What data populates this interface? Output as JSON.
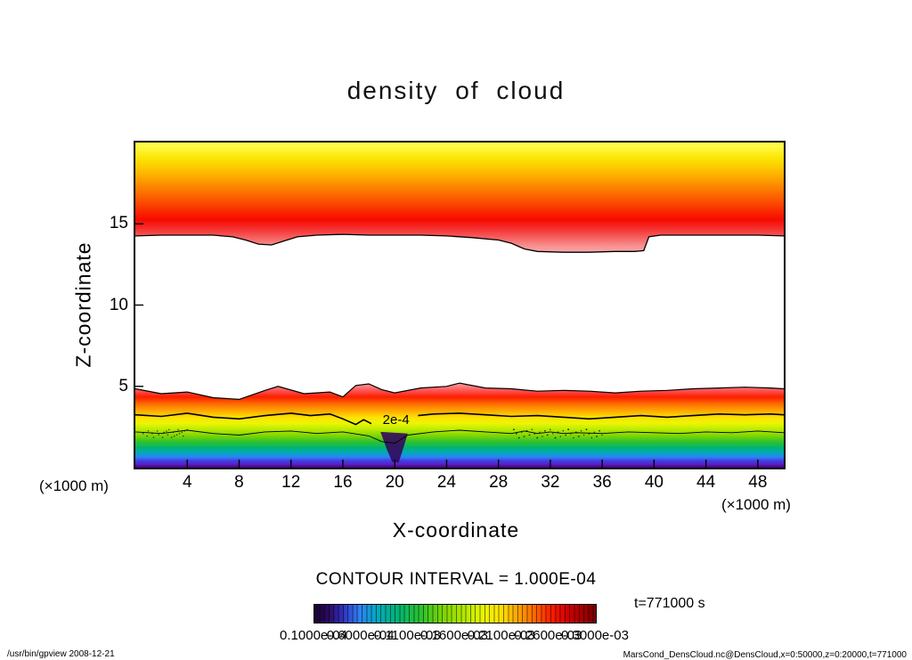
{
  "title": "density of cloud",
  "axes": {
    "x_label": "X-coordinate",
    "y_label": "Z-coordinate",
    "x_unit_left": "(×1000 m)",
    "x_unit_right": "(×1000 m)"
  },
  "annotations": {
    "contour_interval": "CONTOUR INTERVAL = 1.000E-04",
    "time_label": "t=771000 s",
    "footer_left": "/usr/bin/gpview  2008-12-21",
    "footer_right": "MarsCond_DensCloud.nc@DensCloud,x=0:50000,z=0:20000,t=771000"
  },
  "chart_data": {
    "type": "heatmap",
    "subtype": "filled-contour",
    "title": "density of cloud",
    "xlabel": "X-coordinate",
    "ylabel": "Z-coordinate",
    "x_unit": "×1000 m",
    "y_unit": "×1000 m",
    "xlim": [
      0,
      50
    ],
    "ylim": [
      0,
      20
    ],
    "x_ticks": [
      4,
      8,
      12,
      16,
      20,
      24,
      28,
      32,
      36,
      40,
      44,
      48
    ],
    "y_ticks": [
      5,
      10,
      15
    ],
    "contour_interval": "1.000E-04",
    "grid": false,
    "legend_position": "bottom-colorbar",
    "labeled_contour": {
      "value": "2e-4",
      "x": 20.1,
      "z": 2.95
    },
    "upper_layer": {
      "description": "upper cloud deck, z ≈ 13.2–20 km; density increases downward: yellow at top through orange and red to pink at the lower boundary",
      "gradient_z_bottom": 13.2,
      "gradient": [
        [
          0.0,
          "#ffff55"
        ],
        [
          0.07,
          "#fdf32e"
        ],
        [
          0.15,
          "#fce303"
        ],
        [
          0.24,
          "#fdc400"
        ],
        [
          0.33,
          "#fda200"
        ],
        [
          0.42,
          "#fc7d00"
        ],
        [
          0.52,
          "#fb5500"
        ],
        [
          0.62,
          "#f92a00"
        ],
        [
          0.7,
          "#f70a00"
        ],
        [
          0.78,
          "#f53030"
        ],
        [
          0.86,
          "#f66060"
        ],
        [
          0.93,
          "#f88d8d"
        ],
        [
          1.0,
          "#fbadad"
        ]
      ],
      "bottom_boundary": {
        "x": [
          0,
          2,
          4,
          6,
          7.5,
          8.5,
          9.5,
          10.5,
          11.5,
          12.5,
          14,
          16,
          18,
          20,
          22,
          24,
          26,
          28,
          29,
          30,
          31,
          33,
          35,
          37,
          38.5,
          39.2,
          39.6,
          40.5,
          42,
          44,
          46,
          48,
          50
        ],
        "z": [
          14.25,
          14.3,
          14.3,
          14.3,
          14.2,
          14.0,
          13.75,
          13.7,
          13.95,
          14.2,
          14.3,
          14.35,
          14.3,
          14.3,
          14.3,
          14.25,
          14.15,
          14.0,
          13.8,
          13.45,
          13.3,
          13.25,
          13.25,
          13.3,
          13.3,
          13.35,
          14.2,
          14.3,
          14.3,
          14.3,
          14.3,
          14.3,
          14.25
        ]
      }
    },
    "lower_layer": {
      "description": "near-surface cloud layer, z ≈ 0–5 km; pink/red at top grading through orange, yellow, green, cyan, blue to dark purple at the ground",
      "gradient_z_top": 5.3,
      "gradient": [
        [
          0.0,
          "#ffb0b0"
        ],
        [
          0.05,
          "#ff8585"
        ],
        [
          0.11,
          "#ff5050"
        ],
        [
          0.18,
          "#fb1f00"
        ],
        [
          0.26,
          "#fd6a00"
        ],
        [
          0.34,
          "#fda800"
        ],
        [
          0.42,
          "#fde303"
        ],
        [
          0.49,
          "#eaf602"
        ],
        [
          0.56,
          "#b8e902"
        ],
        [
          0.63,
          "#7ed602"
        ],
        [
          0.7,
          "#2ec22e"
        ],
        [
          0.77,
          "#02b470"
        ],
        [
          0.83,
          "#02a8c2"
        ],
        [
          0.88,
          "#2f80f2"
        ],
        [
          0.92,
          "#3f3fe8"
        ],
        [
          0.96,
          "#5a20c0"
        ],
        [
          1.0,
          "#45007d"
        ]
      ],
      "top_boundary": {
        "x": [
          0,
          2,
          4,
          6,
          8,
          10,
          11,
          13,
          15,
          16,
          17,
          18,
          19,
          20,
          22,
          24,
          25,
          27,
          29,
          31,
          33,
          35,
          37,
          39,
          41,
          43,
          45,
          47,
          49,
          50
        ],
        "z": [
          4.85,
          4.55,
          4.65,
          4.3,
          4.2,
          4.75,
          5.0,
          4.55,
          4.65,
          4.35,
          5.05,
          5.15,
          4.8,
          4.6,
          4.9,
          5.0,
          5.2,
          4.9,
          4.85,
          4.7,
          4.75,
          4.7,
          4.6,
          4.7,
          4.75,
          4.85,
          4.9,
          4.95,
          4.9,
          4.85
        ]
      },
      "purple_notch": {
        "x": [
          18.9,
          19.4,
          19.8,
          20.3,
          20.7,
          21.0
        ],
        "z": [
          2.2,
          1.1,
          0.35,
          0.3,
          1.3,
          2.1
        ],
        "color": "#35085f"
      },
      "speckle_regions": [
        {
          "x": [
            0.5,
            4.0
          ],
          "z": [
            1.8,
            2.35
          ],
          "n": 22
        },
        {
          "x": [
            29.0,
            36.0
          ],
          "z": [
            1.75,
            2.35
          ],
          "n": 55
        }
      ]
    },
    "contours": [
      {
        "name": "contour-2e-4",
        "width": 1.6,
        "segments": [
          {
            "x": [
              0,
              2,
              4,
              6,
              8,
              10,
              12,
              13.5,
              15,
              16,
              17,
              17.6,
              18.2
            ],
            "z": [
              3.25,
              3.15,
              3.35,
              3.1,
              3.0,
              3.2,
              3.35,
              3.2,
              3.3,
              3.0,
              2.65,
              2.95,
              2.7
            ]
          },
          {
            "x": [
              21.8,
              23,
              25,
              27,
              29,
              31,
              33,
              35,
              37,
              39,
              41,
              43,
              45,
              47,
              49,
              50
            ],
            "z": [
              3.2,
              3.3,
              3.35,
              3.25,
              3.15,
              3.2,
              3.1,
              3.0,
              3.1,
              3.2,
              3.1,
              3.2,
              3.3,
              3.25,
              3.3,
              3.25
            ]
          }
        ]
      },
      {
        "name": "inner-contour",
        "width": 0.9,
        "segments": [
          {
            "x": [
              0,
              2,
              4,
              6,
              8,
              10,
              12,
              14,
              16,
              18,
              19,
              20,
              21,
              23,
              25,
              27,
              29,
              30,
              31,
              32,
              33,
              34,
              36,
              38,
              40,
              42,
              44,
              46,
              48,
              50
            ],
            "z": [
              2.2,
              2.1,
              2.3,
              2.1,
              2.0,
              2.2,
              2.25,
              2.1,
              2.2,
              1.95,
              1.6,
              1.5,
              2.0,
              2.2,
              2.3,
              2.2,
              2.1,
              2.25,
              2.1,
              2.2,
              2.1,
              2.15,
              2.1,
              2.2,
              2.15,
              2.1,
              2.2,
              2.15,
              2.25,
              2.15
            ]
          }
        ]
      }
    ],
    "colorbar": {
      "tick_labels": [
        "0.1000e-04",
        "0.6000e-04",
        "0.1100e-03",
        "0.1600e-03",
        "0.2100e-03",
        "0.2600e-03",
        "0.3000e-03"
      ],
      "gradient": [
        [
          0.0,
          "#1a0033"
        ],
        [
          0.05,
          "#2a0a5e"
        ],
        [
          0.1,
          "#2f2fbb"
        ],
        [
          0.16,
          "#2f80f2"
        ],
        [
          0.22,
          "#02a8c2"
        ],
        [
          0.3,
          "#02b470"
        ],
        [
          0.38,
          "#2ec22e"
        ],
        [
          0.46,
          "#7ed602"
        ],
        [
          0.54,
          "#b8e902"
        ],
        [
          0.6,
          "#eaf602"
        ],
        [
          0.66,
          "#fde303"
        ],
        [
          0.72,
          "#fda800"
        ],
        [
          0.78,
          "#fd6a00"
        ],
        [
          0.84,
          "#fb1f00"
        ],
        [
          0.9,
          "#d40000"
        ],
        [
          0.95,
          "#a50000"
        ],
        [
          1.0,
          "#7a0000"
        ]
      ]
    }
  }
}
